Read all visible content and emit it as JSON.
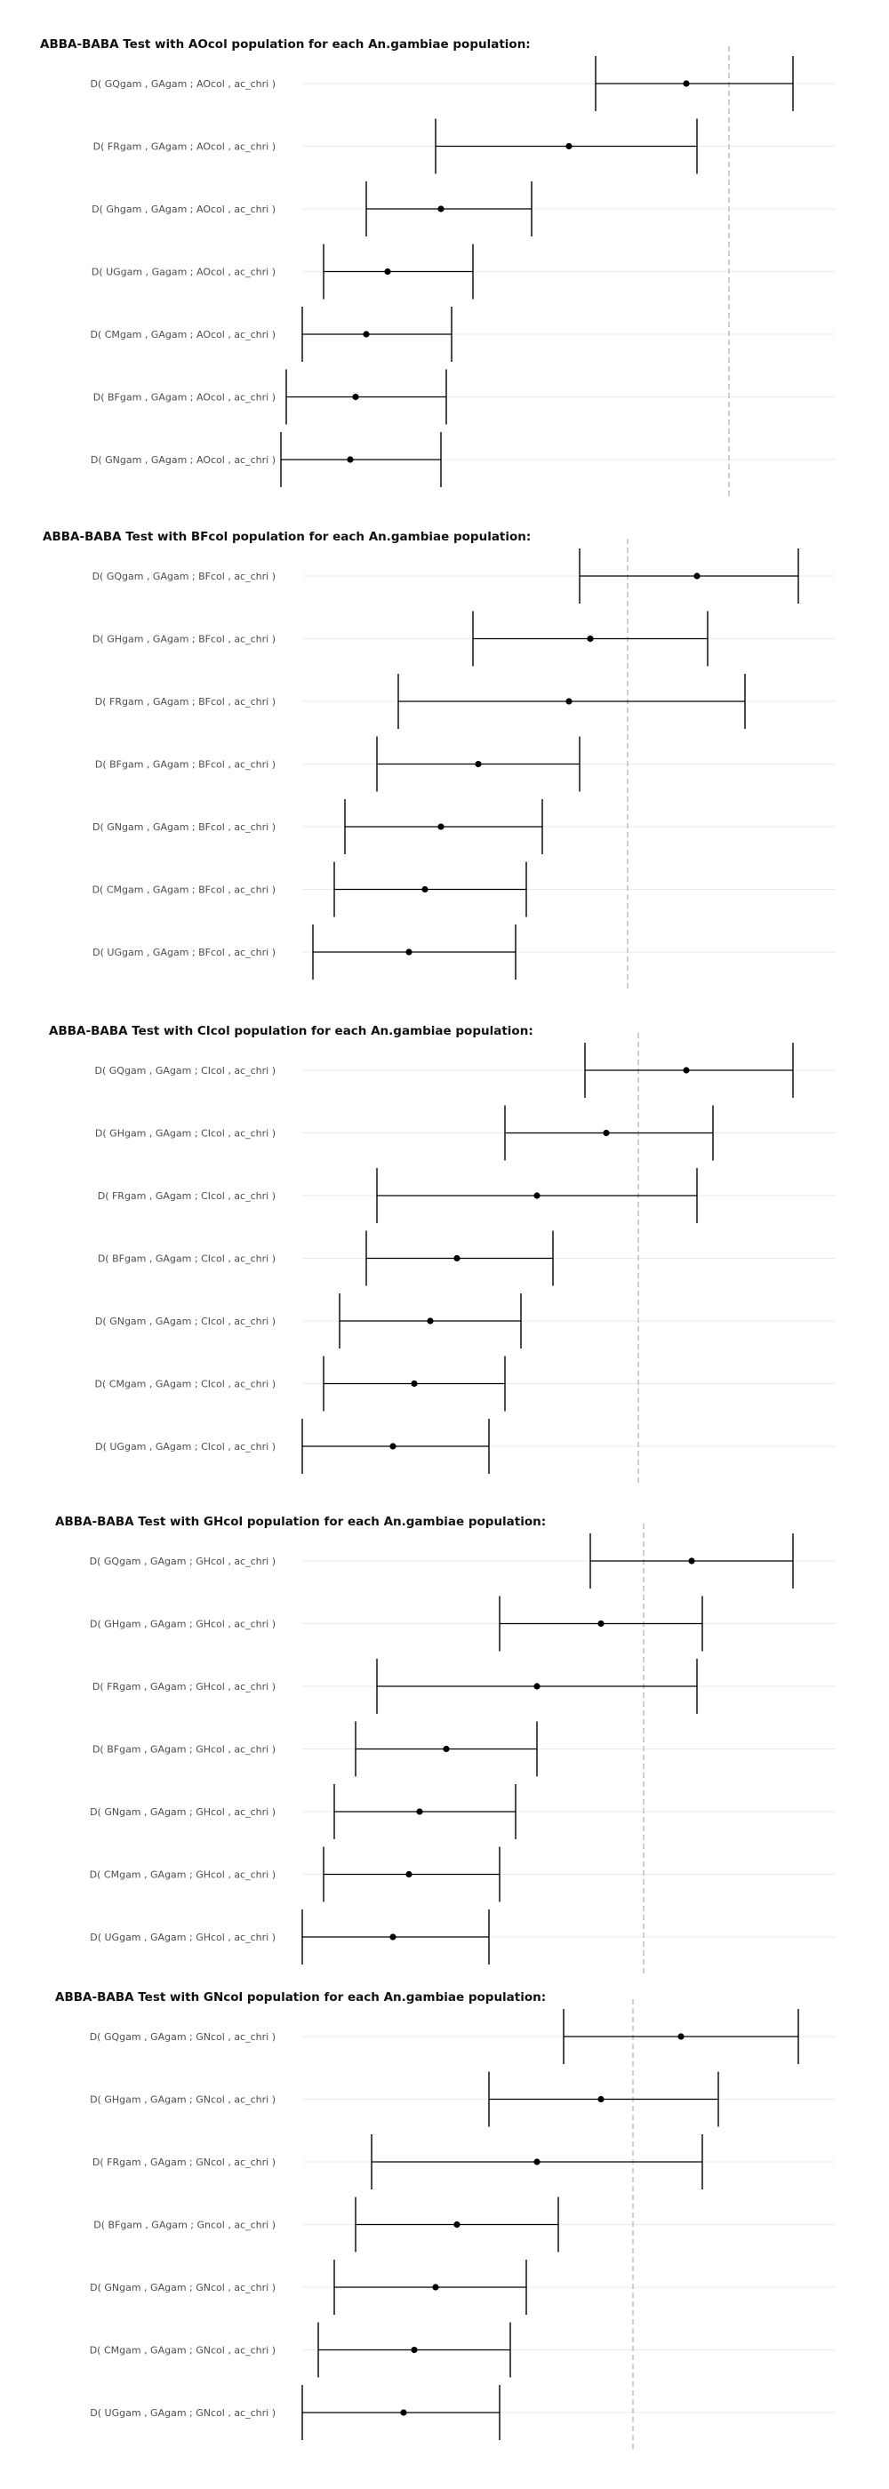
{
  "chart_data": [
    {
      "type": "errorbar",
      "title": "ABBA-BABA Test with AOcol population for each An.gambiae population:",
      "xlabel": "",
      "ylabel": "",
      "reference_x": 0.8,
      "xlim": [
        0,
        1
      ],
      "grid": "horizontal",
      "rows": [
        {
          "label": "D( GQgam , GAgam ; AOcol , ac_chri )",
          "estimate": 0.72,
          "lower": 0.55,
          "upper": 0.92
        },
        {
          "label": "D( FRgam , GAgam ; AOcol , ac_chri )",
          "estimate": 0.5,
          "lower": 0.25,
          "upper": 0.74
        },
        {
          "label": "D( Ghgam , GAgam ; AOcol , ac_chri )",
          "estimate": 0.26,
          "lower": 0.12,
          "upper": 0.43
        },
        {
          "label": "D( UGgam , Gagam ; AOcol , ac_chri )",
          "estimate": 0.16,
          "lower": 0.04,
          "upper": 0.32
        },
        {
          "label": "D( CMgam , GAgam ; AOcol , ac_chri )",
          "estimate": 0.12,
          "lower": 0.0,
          "upper": 0.28
        },
        {
          "label": "D( BFgam , GAgam ; AOcol , ac_chri )",
          "estimate": 0.1,
          "lower": -0.03,
          "upper": 0.27
        },
        {
          "label": "D( GNgam , GAgam ; AOcol , ac_chri )",
          "estimate": 0.09,
          "lower": -0.04,
          "upper": 0.26
        }
      ]
    },
    {
      "type": "errorbar",
      "title": "ABBA-BABA Test with BFcol population for each An.gambiae population:",
      "xlabel": "",
      "ylabel": "",
      "reference_x": 0.61,
      "xlim": [
        0,
        1
      ],
      "grid": "horizontal",
      "rows": [
        {
          "label": "D( GQgam , GAgam ; BFcol , ac_chri )",
          "estimate": 0.74,
          "lower": 0.52,
          "upper": 0.93
        },
        {
          "label": "D( GHgam , GAgam ; BFcol , ac_chri )",
          "estimate": 0.54,
          "lower": 0.32,
          "upper": 0.76
        },
        {
          "label": "D( FRgam , GAgam ; BFcol , ac_chri )",
          "estimate": 0.5,
          "lower": 0.18,
          "upper": 0.83
        },
        {
          "label": "D( BFgam , GAgam ; BFcol , ac_chri )",
          "estimate": 0.33,
          "lower": 0.14,
          "upper": 0.52
        },
        {
          "label": "D( GNgam , GAgam ; BFcol , ac_chri )",
          "estimate": 0.26,
          "lower": 0.08,
          "upper": 0.45
        },
        {
          "label": "D( CMgam , GAgam ; BFcol , ac_chri )",
          "estimate": 0.23,
          "lower": 0.06,
          "upper": 0.42
        },
        {
          "label": "D( UGgam , GAgam ; BFcol , ac_chri )",
          "estimate": 0.2,
          "lower": 0.02,
          "upper": 0.4
        }
      ]
    },
    {
      "type": "errorbar",
      "title": "ABBA-BABA Test with CIcol population for each An.gambiae population:",
      "xlabel": "",
      "ylabel": "",
      "reference_x": 0.63,
      "xlim": [
        0,
        1
      ],
      "grid": "horizontal",
      "rows": [
        {
          "label": "D( GQgam , GAgam ; CIcol , ac_chri )",
          "estimate": 0.72,
          "lower": 0.53,
          "upper": 0.92
        },
        {
          "label": "D( GHgam , GAgam ; CIcol , ac_chri )",
          "estimate": 0.57,
          "lower": 0.38,
          "upper": 0.77
        },
        {
          "label": "D( FRgam , GAgam ; CIcol , ac_chri )",
          "estimate": 0.44,
          "lower": 0.14,
          "upper": 0.74
        },
        {
          "label": "D( BFgam , GAgam ; CIcol , ac_chri )",
          "estimate": 0.29,
          "lower": 0.12,
          "upper": 0.47
        },
        {
          "label": "D( GNgam , GAgam ; CIcol , ac_chri )",
          "estimate": 0.24,
          "lower": 0.07,
          "upper": 0.41
        },
        {
          "label": "D( CMgam , GAgam ; CIcol , ac_chri )",
          "estimate": 0.21,
          "lower": 0.04,
          "upper": 0.38
        },
        {
          "label": "D( UGgam , GAgam ; CIcol , ac_chri )",
          "estimate": 0.17,
          "lower": 0.0,
          "upper": 0.35
        }
      ]
    },
    {
      "type": "errorbar",
      "title": "ABBA-BABA Test with GHcol population for each An.gambiae population:",
      "xlabel": "",
      "ylabel": "",
      "reference_x": 0.64,
      "xlim": [
        0,
        1
      ],
      "grid": "horizontal",
      "rows": [
        {
          "label": "D( GQgam , GAgam ; GHcol , ac_chri )",
          "estimate": 0.73,
          "lower": 0.54,
          "upper": 0.92
        },
        {
          "label": "D( GHgam , GAgam ; GHcol , ac_chri )",
          "estimate": 0.56,
          "lower": 0.37,
          "upper": 0.75
        },
        {
          "label": "D( FRgam , GAgam ; GHcol , ac_chri )",
          "estimate": 0.44,
          "lower": 0.14,
          "upper": 0.74
        },
        {
          "label": "D( BFgam , GAgam ; GHcol , ac_chri )",
          "estimate": 0.27,
          "lower": 0.1,
          "upper": 0.44
        },
        {
          "label": "D( GNgam , GAgam ; GHcol , ac_chri )",
          "estimate": 0.22,
          "lower": 0.06,
          "upper": 0.4
        },
        {
          "label": "D( CMgam , GAgam ; GHcol , ac_chri )",
          "estimate": 0.2,
          "lower": 0.04,
          "upper": 0.37
        },
        {
          "label": "D( UGgam , GAgam ; GHcol , ac_chri )",
          "estimate": 0.17,
          "lower": 0.0,
          "upper": 0.35
        }
      ]
    },
    {
      "type": "errorbar",
      "title": "ABBA-BABA Test with GNcol population for each An.gambiae population:",
      "xlabel": "",
      "ylabel": "",
      "reference_x": 0.62,
      "xlim": [
        0,
        1
      ],
      "grid": "horizontal",
      "rows": [
        {
          "label": "D( GQgam , GAgam ; GNcol , ac_chri )",
          "estimate": 0.71,
          "lower": 0.49,
          "upper": 0.93
        },
        {
          "label": "D( GHgam , GAgam ; GNcol , ac_chri )",
          "estimate": 0.56,
          "lower": 0.35,
          "upper": 0.78
        },
        {
          "label": "D( FRgam , GAgam ; GNcol , ac_chri )",
          "estimate": 0.44,
          "lower": 0.13,
          "upper": 0.75
        },
        {
          "label": "D( BFgam , GAgam ; Gncol , ac_chri )",
          "estimate": 0.29,
          "lower": 0.1,
          "upper": 0.48
        },
        {
          "label": "D( GNgam , GAgam ; GNcol , ac_chri )",
          "estimate": 0.25,
          "lower": 0.06,
          "upper": 0.42
        },
        {
          "label": "D( CMgam , GAgam ; GNcol , ac_chri )",
          "estimate": 0.21,
          "lower": 0.03,
          "upper": 0.39
        },
        {
          "label": "D( UGgam , GAgam ; GNcol , ac_chri )",
          "estimate": 0.19,
          "lower": 0.0,
          "upper": 0.37
        }
      ]
    }
  ]
}
